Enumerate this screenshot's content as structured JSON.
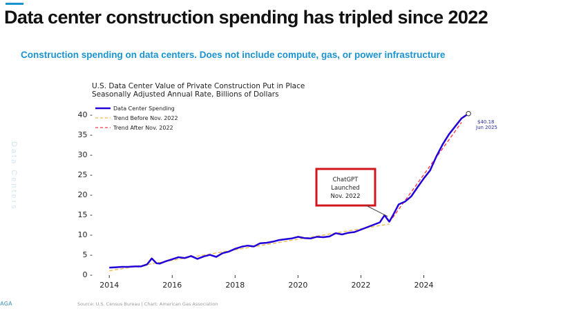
{
  "headline": "Data center construction spending has tripled since 2022",
  "subheadline": "Construction spending on data centers. Does not include compute, gas, or power infrastructure",
  "side_text": "Data Centers",
  "logo_text": "AGA",
  "colors": {
    "accent": "#1a93d1",
    "series": "#2200d8",
    "trend_before": "#f2b84a",
    "trend_after": "#ff3b4b",
    "callout": "#d0161c"
  },
  "chart_data": {
    "type": "line",
    "title": "U.S. Data Center Value of Private Construction Put in Place",
    "subtitle": "Seasonally Adjusted Annual Rate, Billions of Dollars",
    "xlim": [
      2013.6,
      2025.9
    ],
    "ylim": [
      0,
      41
    ],
    "x_ticks": [
      2014,
      2016,
      2018,
      2020,
      2022,
      2024
    ],
    "y_ticks": [
      0,
      5,
      10,
      15,
      20,
      25,
      30,
      35,
      40
    ],
    "tick_suffix": " -",
    "legend": [
      "Data Center Spending",
      "Trend Before Nov. 2022",
      "Trend After Nov. 2022"
    ],
    "series": [
      {
        "name": "Data Center Spending",
        "x": [
          2014.0,
          2014.2,
          2014.4,
          2014.6,
          2014.8,
          2015.0,
          2015.2,
          2015.35,
          2015.5,
          2015.6,
          2015.8,
          2016.0,
          2016.2,
          2016.4,
          2016.6,
          2016.8,
          2017.0,
          2017.2,
          2017.4,
          2017.6,
          2017.8,
          2018.0,
          2018.2,
          2018.4,
          2018.6,
          2018.8,
          2019.0,
          2019.2,
          2019.4,
          2019.6,
          2019.8,
          2020.0,
          2020.2,
          2020.4,
          2020.6,
          2020.8,
          2021.0,
          2021.2,
          2021.4,
          2021.6,
          2021.8,
          2022.0,
          2022.2,
          2022.4,
          2022.6,
          2022.75,
          2022.9,
          2023.0,
          2023.2,
          2023.4,
          2023.6,
          2023.8,
          2024.0,
          2024.2,
          2024.4,
          2024.6,
          2024.8,
          2025.0,
          2025.2,
          2025.42
        ],
        "values": [
          1.7,
          1.8,
          1.9,
          1.9,
          2.0,
          2.0,
          2.5,
          4.0,
          2.8,
          2.7,
          3.3,
          3.8,
          4.3,
          4.1,
          4.6,
          3.9,
          4.5,
          4.9,
          4.4,
          5.3,
          5.7,
          6.4,
          6.9,
          7.2,
          7.0,
          7.8,
          7.9,
          8.2,
          8.6,
          8.8,
          9.0,
          9.4,
          9.1,
          9.0,
          9.4,
          9.3,
          9.5,
          10.3,
          10.0,
          10.4,
          10.6,
          11.2,
          11.8,
          12.4,
          13.0,
          14.8,
          13.2,
          14.5,
          17.5,
          18.2,
          19.5,
          21.8,
          24.0,
          26.0,
          29.5,
          32.5,
          35.0,
          37.0,
          39.0,
          40.18
        ]
      },
      {
        "name": "Trend Before Nov. 2022",
        "x": [
          2014.0,
          2022.9
        ],
        "values": [
          0.9,
          12.6
        ]
      },
      {
        "name": "Trend After Nov. 2022",
        "x": [
          2022.9,
          2025.2
        ],
        "values": [
          13.0,
          38.0
        ]
      }
    ],
    "endpoint_label": [
      "$40.18",
      "Jun 2025"
    ],
    "annotation": {
      "lines": [
        "ChatGPT",
        "Launched",
        "Nov. 2022"
      ],
      "x": 2022.85,
      "y": 14.5
    },
    "source": "Source: U.S. Census Bureau | Chart: American Gas Association"
  }
}
